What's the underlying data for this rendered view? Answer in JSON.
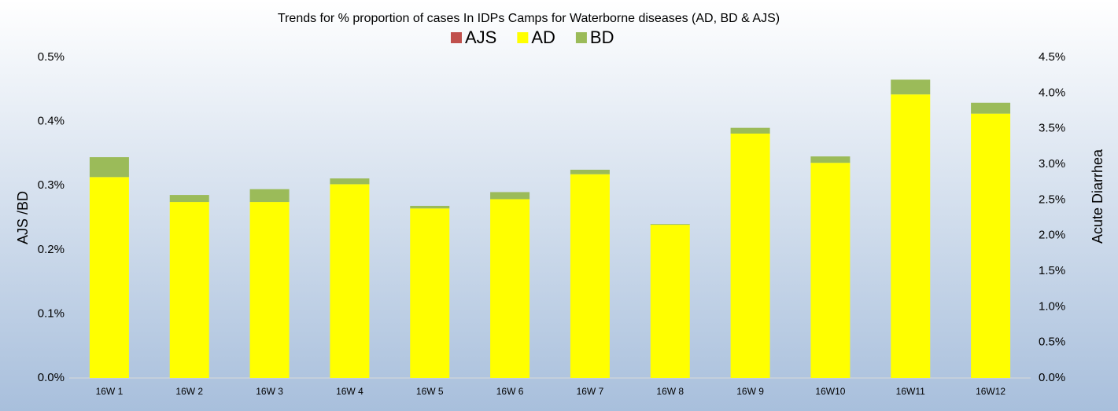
{
  "chart_data": {
    "type": "bar",
    "stacked": true,
    "title": "Trends for % proportion of cases In IDPs Camps for Waterborne diseases (AD, BD & AJS)",
    "ylabel": "AJS /BD",
    "y2label": "Acute Diarrhea",
    "categories": [
      "16W 1",
      "16W 2",
      "16W 3",
      "16W 4",
      "16W 5",
      "16W 6",
      "16W 7",
      "16W 8",
      "16W 9",
      "16W10",
      "16W11",
      "16W12"
    ],
    "series": [
      {
        "name": "AJS",
        "color": "#c0504d",
        "axis": "y",
        "values": [
          0,
          0,
          0,
          0,
          0,
          0,
          0,
          0,
          0,
          0,
          0,
          0
        ]
      },
      {
        "name": "AD",
        "color": "#ffff00",
        "axis": "y2",
        "values": [
          2.82,
          2.47,
          2.47,
          2.72,
          2.38,
          2.51,
          2.86,
          2.15,
          3.43,
          3.02,
          3.98,
          3.71
        ]
      },
      {
        "name": "BD",
        "color": "#9bbb59",
        "axis": "y",
        "values": [
          0.031,
          0.011,
          0.02,
          0.009,
          0.004,
          0.011,
          0.007,
          0.001,
          0.009,
          0.01,
          0.023,
          0.017
        ]
      }
    ],
    "ylim": [
      0,
      0.5
    ],
    "yticks": [
      {
        "value": 0,
        "label": "0.0%"
      },
      {
        "value": 0.1,
        "label": "0.1%"
      },
      {
        "value": 0.2,
        "label": "0.2%"
      },
      {
        "value": 0.3,
        "label": "0.3%"
      },
      {
        "value": 0.4,
        "label": "0.4%"
      },
      {
        "value": 0.5,
        "label": "0.5%"
      }
    ],
    "y2lim": [
      0,
      4.5
    ],
    "y2ticks": [
      {
        "value": 0,
        "label": "0.0%"
      },
      {
        "value": 0.5,
        "label": "0.5%"
      },
      {
        "value": 1,
        "label": "1.0%"
      },
      {
        "value": 1.5,
        "label": "1.5%"
      },
      {
        "value": 2,
        "label": "2.0%"
      },
      {
        "value": 2.5,
        "label": "2.5%"
      },
      {
        "value": 3,
        "label": "3.0%"
      },
      {
        "value": 3.5,
        "label": "3.5%"
      },
      {
        "value": 4,
        "label": "4.0%"
      },
      {
        "value": 4.5,
        "label": "4.5%"
      }
    ],
    "grid": false
  }
}
